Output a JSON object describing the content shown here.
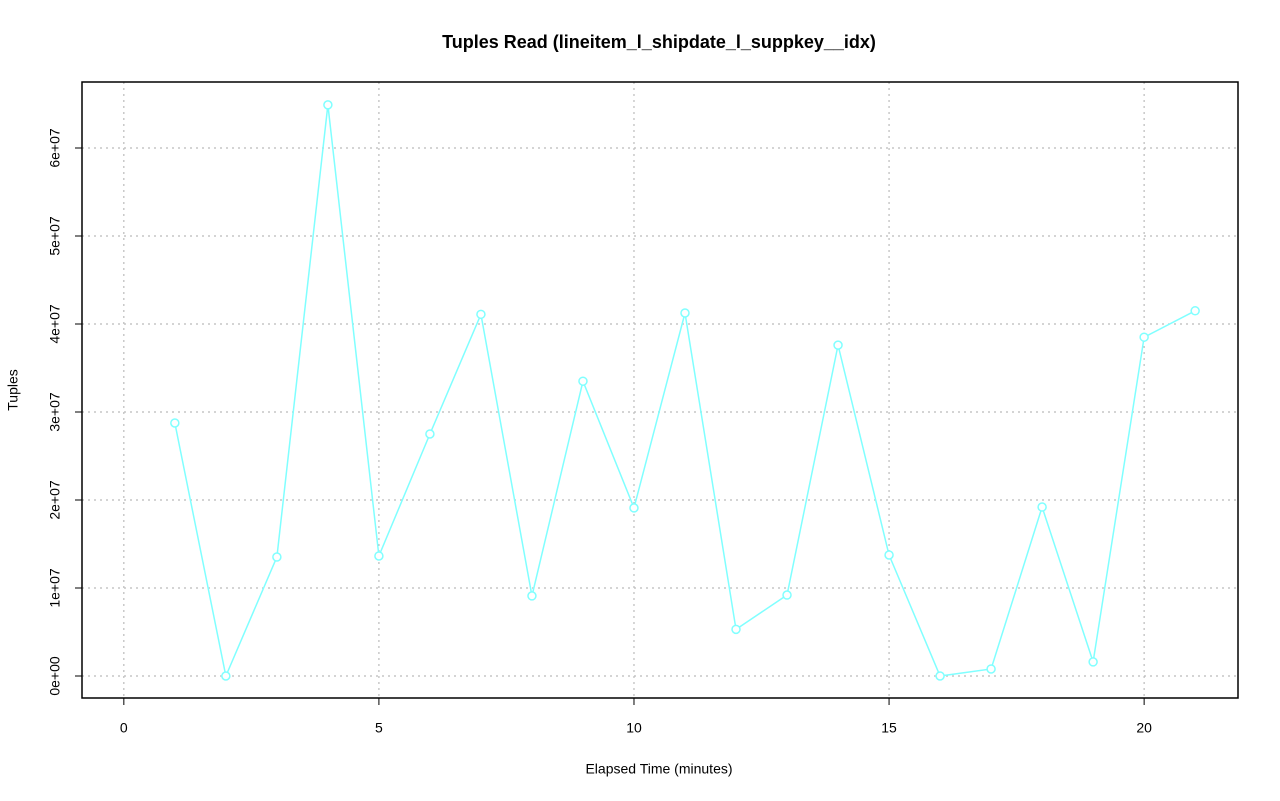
{
  "chart_data": {
    "type": "line",
    "title": "Tuples Read (lineitem_l_shipdate_l_suppkey__idx)",
    "x_label": "Elapsed Time (minutes)",
    "y_label": "Tuples",
    "x": [
      1,
      2,
      3,
      4,
      5,
      6,
      7,
      8,
      9,
      10,
      11,
      12,
      13,
      14,
      15,
      16,
      17,
      18,
      19,
      20,
      21
    ],
    "series": [
      {
        "name": "Tuples",
        "color": "#80ffff",
        "values": [
          28750000,
          0,
          13520000,
          64900000,
          13640000,
          27500000,
          41100000,
          9100000,
          33500000,
          19100000,
          41250000,
          5300000,
          9200000,
          37600000,
          13750000,
          0,
          800000,
          19200000,
          1600000,
          38500000,
          41500000
        ]
      }
    ],
    "xlim": [
      -0.82,
      21.84
    ],
    "ylim": [
      -2500000,
      67500000
    ],
    "xticks": [
      0,
      5,
      10,
      15,
      20
    ],
    "yticks": [
      {
        "value": 0,
        "label": "0e+00"
      },
      {
        "value": 10000000,
        "label": "1e+07"
      },
      {
        "value": 20000000,
        "label": "2e+07"
      },
      {
        "value": 30000000,
        "label": "3e+07"
      },
      {
        "value": 40000000,
        "label": "4e+07"
      },
      {
        "value": 50000000,
        "label": "5e+07"
      },
      {
        "value": 60000000,
        "label": "6e+07"
      }
    ],
    "grid": true
  }
}
